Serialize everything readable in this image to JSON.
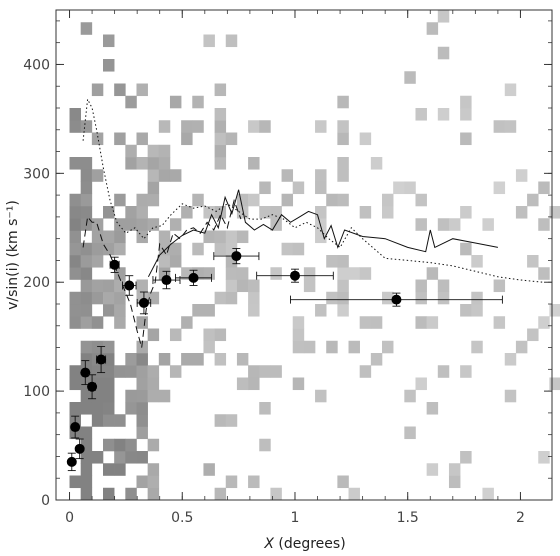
{
  "chart_data": {
    "type": "scatter",
    "xlabel_var": "X",
    "xlabel_rest": " (degrees)",
    "ylabel": "v/sin(i)  (km s⁻¹)",
    "xlim": [
      -0.06,
      2.14
    ],
    "ylim": [
      0,
      450
    ],
    "xticks": [
      0,
      0.5,
      1,
      1.5,
      2
    ],
    "xtick_labels": [
      "0",
      "0.5",
      "1",
      "1.5",
      "2"
    ],
    "yticks": [
      0,
      100,
      200,
      300,
      400
    ],
    "ytick_labels": [
      "0",
      "100",
      "200",
      "300",
      "400"
    ],
    "grid": false,
    "background_density": {
      "description_cells": "gray 2D histogram; each cell [x_center, y_center, intensity 0-1]",
      "cell_width": 0.0495,
      "cell_height": 11.25,
      "cells": []
    },
    "series": [
      {
        "style": "points_with_xy_errorbars",
        "points": [
          {
            "x": 0.01,
            "y": 35,
            "xerr": 0.008,
            "yerr": 8
          },
          {
            "x": 0.025,
            "y": 67,
            "xerr": 0.01,
            "yerr": 10
          },
          {
            "x": 0.045,
            "y": 47,
            "xerr": 0.01,
            "yerr": 9
          },
          {
            "x": 0.07,
            "y": 117,
            "xerr": 0.012,
            "yerr": 11
          },
          {
            "x": 0.1,
            "y": 104,
            "xerr": 0.015,
            "yerr": 11
          },
          {
            "x": 0.14,
            "y": 129,
            "xerr": 0.02,
            "yerr": 12
          },
          {
            "x": 0.2,
            "y": 216,
            "xerr": 0.02,
            "yerr": 7
          },
          {
            "x": 0.265,
            "y": 197,
            "xerr": 0.03,
            "yerr": 9
          },
          {
            "x": 0.33,
            "y": 181,
            "xerr": 0.03,
            "yerr": 10
          },
          {
            "x": 0.43,
            "y": 202,
            "xerr": 0.06,
            "yerr": 8
          },
          {
            "x": 0.55,
            "y": 204,
            "xerr": 0.08,
            "yerr": 7
          },
          {
            "x": 0.74,
            "y": 224,
            "xerr": 0.1,
            "yerr": 7
          },
          {
            "x": 1.0,
            "y": 206,
            "xerr": 0.17,
            "yerr": 6
          },
          {
            "x": 1.45,
            "y": 184,
            "xerr": 0.47,
            "yerr": 6
          }
        ]
      },
      {
        "style": "solid",
        "x": [
          0.35,
          0.4,
          0.45,
          0.5,
          0.55,
          0.6,
          0.63,
          0.66,
          0.69,
          0.72,
          0.75,
          0.78,
          0.82,
          0.86,
          0.9,
          0.94,
          0.98,
          1.02,
          1.06,
          1.1,
          1.13,
          1.16,
          1.19,
          1.22,
          1.3,
          1.4,
          1.5,
          1.58,
          1.6,
          1.62,
          1.7,
          1.8,
          1.9
        ],
        "y": [
          205,
          225,
          235,
          243,
          248,
          245,
          262,
          250,
          278,
          263,
          285,
          255,
          248,
          253,
          248,
          262,
          255,
          260,
          265,
          262,
          240,
          252,
          232,
          248,
          242,
          240,
          232,
          228,
          248,
          232,
          240,
          236,
          232
        ]
      },
      {
        "style": "dashed",
        "x": [
          0.06,
          0.08,
          0.1,
          0.12,
          0.15,
          0.18,
          0.21,
          0.24,
          0.27,
          0.3,
          0.32,
          0.34,
          0.36,
          0.38,
          0.4,
          0.43,
          0.46,
          0.49,
          0.52,
          0.55,
          0.58,
          0.61,
          0.64,
          0.67,
          0.7,
          0.73,
          0.76
        ],
        "y": [
          232,
          260,
          255,
          255,
          235,
          225,
          210,
          195,
          180,
          155,
          140,
          175,
          190,
          200,
          235,
          225,
          245,
          240,
          248,
          250,
          245,
          255,
          248,
          262,
          250,
          275,
          258
        ]
      },
      {
        "style": "dotted",
        "x": [
          0.06,
          0.08,
          0.1,
          0.12,
          0.15,
          0.18,
          0.21,
          0.25,
          0.29,
          0.33,
          0.37,
          0.41,
          0.45,
          0.5,
          0.55,
          0.6,
          0.65,
          0.7,
          0.75,
          0.8,
          0.85,
          0.9,
          0.95,
          1.0,
          1.05,
          1.1,
          1.15,
          1.2,
          1.25,
          1.3,
          1.4,
          1.5,
          1.6,
          1.7,
          1.8,
          1.9,
          2.0,
          2.1
        ],
        "y": [
          330,
          368,
          360,
          340,
          305,
          275,
          255,
          245,
          250,
          240,
          250,
          252,
          262,
          272,
          268,
          270,
          265,
          272,
          265,
          258,
          258,
          262,
          258,
          250,
          255,
          250,
          240,
          232,
          250,
          240,
          222,
          220,
          218,
          215,
          210,
          205,
          202,
          200
        ]
      }
    ]
  }
}
